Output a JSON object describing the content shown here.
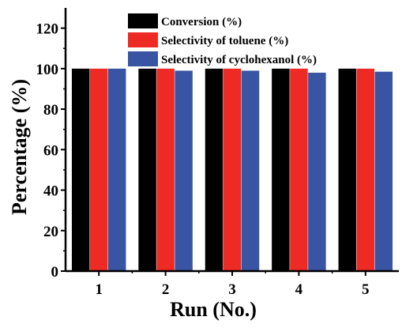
{
  "chart_data": {
    "type": "bar",
    "title": "",
    "xlabel": "Run (No.)",
    "ylabel": "Percentage (%)",
    "categories": [
      "1",
      "2",
      "3",
      "4",
      "5"
    ],
    "ylim": [
      0,
      130
    ],
    "yticks": [
      0,
      20,
      40,
      60,
      80,
      100,
      120
    ],
    "grid": false,
    "legend_position": "top-right",
    "series": [
      {
        "name": "Conversion (%)",
        "color": "#000000",
        "values": [
          100,
          100,
          100,
          100,
          100
        ]
      },
      {
        "name": "Selectivity of toluene (%)",
        "color": "#ee2a24",
        "values": [
          100,
          100,
          100,
          100,
          100
        ]
      },
      {
        "name": "Selectivity of  cyclohexanol (%)",
        "color": "#3a54a4",
        "values": [
          100,
          99,
          99,
          98,
          98.5
        ]
      }
    ]
  }
}
